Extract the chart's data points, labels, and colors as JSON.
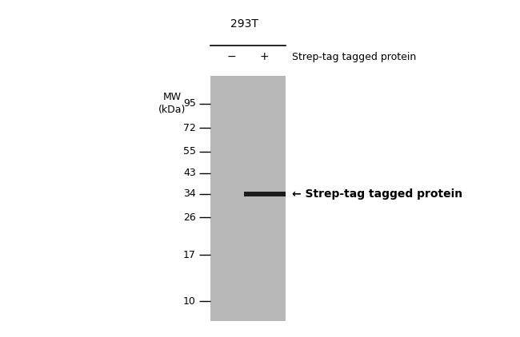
{
  "background_color": "#ffffff",
  "gel_color": "#b8b8b8",
  "band_color": "#1c1c1c",
  "mw_labels": [
    "95",
    "72",
    "55",
    "43",
    "34",
    "26",
    "17",
    "10"
  ],
  "mw_kda": [
    95,
    72,
    55,
    43,
    34,
    26,
    17,
    10
  ],
  "cell_line": "293T",
  "condition_minus": "−",
  "condition_plus": "+",
  "header_text": "Strep-tag tagged protein",
  "annotation_text": "← Strep-tag tagged protein",
  "mw_unit": "MW\n(kDa)"
}
